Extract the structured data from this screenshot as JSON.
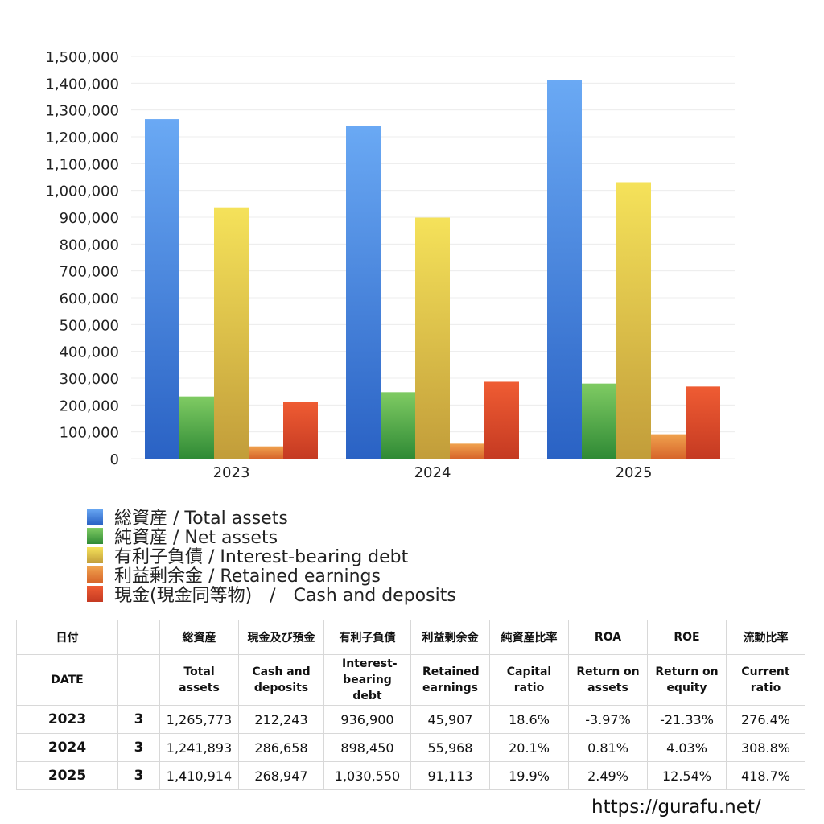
{
  "chart_data": {
    "type": "bar",
    "categories": [
      "2023",
      "2024",
      "2025"
    ],
    "ylim": [
      0,
      1500000
    ],
    "yticks": [
      "0",
      "100,000",
      "200,000",
      "300,000",
      "400,000",
      "500,000",
      "600,000",
      "700,000",
      "800,000",
      "900,000",
      "1,000,000",
      "1,100,000",
      "1,200,000",
      "1,300,000",
      "1,400,000",
      "1,500,000"
    ],
    "grid": true,
    "legend_position": "bottom-left",
    "series": [
      {
        "name": "総資産 / Total assets",
        "values": [
          1265773,
          1241893,
          1410914
        ],
        "color_top": "#6aa9f4",
        "color_bottom": "#2a62c4"
      },
      {
        "name": "純資産 / Net assets",
        "values": [
          232000,
          248000,
          280000
        ],
        "color_top": "#7fcb63",
        "color_bottom": "#2f8a35"
      },
      {
        "name": "有利子負債 / Interest-bearing debt",
        "values": [
          936900,
          898450,
          1030550
        ],
        "color_top": "#f5e25a",
        "color_bottom": "#c29d3a"
      },
      {
        "name": "利益剰余金 / Retained earnings",
        "values": [
          45907,
          55968,
          91113
        ],
        "color_top": "#f0a24e",
        "color_bottom": "#d7652a"
      },
      {
        "name": "現金(現金同等物)　/　Cash and deposits",
        "values": [
          212243,
          286658,
          268947
        ],
        "color_top": "#ef5c33",
        "color_bottom": "#c53a22"
      }
    ]
  },
  "table": {
    "headers_jp": [
      "日付",
      "",
      "総資産",
      "現金及び預金",
      "有利子負債",
      "利益剰余金",
      "純資産比率",
      "ROA",
      "ROE",
      "流動比率"
    ],
    "headers_en": [
      "DATE",
      "",
      "Total assets",
      "Cash and deposits",
      "Interest-bearing debt",
      "Retained earnings",
      "Capital ratio",
      "Return on assets",
      "Return on equity",
      "Current ratio"
    ],
    "rows": [
      {
        "year": "2023",
        "month": "3",
        "total_assets": "1,265,773",
        "cash": "212,243",
        "debt": "936,900",
        "retained": "45,907",
        "capital_ratio": "18.6%",
        "roa": "-3.97%",
        "roe": "-21.33%",
        "current_ratio": "276.4%"
      },
      {
        "year": "2024",
        "month": "3",
        "total_assets": "1,241,893",
        "cash": "286,658",
        "debt": "898,450",
        "retained": "55,968",
        "capital_ratio": "20.1%",
        "roa": "0.81%",
        "roe": "4.03%",
        "current_ratio": "308.8%"
      },
      {
        "year": "2025",
        "month": "3",
        "total_assets": "1,410,914",
        "cash": "268,947",
        "debt": "1,030,550",
        "retained": "91,113",
        "capital_ratio": "19.9%",
        "roa": "2.49%",
        "roe": "12.54%",
        "current_ratio": "418.7%"
      }
    ],
    "negative_color": "#e0442a"
  },
  "footer": {
    "url": "https://gurafu.net/"
  }
}
